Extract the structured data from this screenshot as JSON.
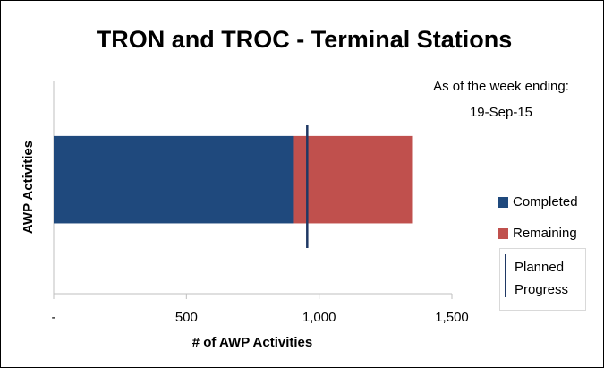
{
  "chart_data": {
    "type": "stacked_bar_horizontal",
    "title": "TRON and TROC - Terminal Stations",
    "annotations": [
      "As of the week ending:",
      "19-Sep-15"
    ],
    "ylabel": "AWP Activities",
    "xlabel": "# of AWP Activities",
    "categories": [
      null
    ],
    "series": [
      {
        "name": "Completed",
        "color": "#1f497d",
        "values": [
          905
        ]
      },
      {
        "name": "Remaining",
        "color": "#c0504d",
        "values": [
          445
        ]
      }
    ],
    "reference_lines": [
      {
        "name": "Planned Progress",
        "color": "#1f3864",
        "value": 955
      }
    ],
    "xlim": [
      0,
      1500
    ],
    "xticks": [
      {
        "value": 0,
        "label": "-"
      },
      500,
      {
        "value": 1000,
        "label": "1,000"
      },
      {
        "value": 1500,
        "label": "1,500"
      }
    ]
  }
}
